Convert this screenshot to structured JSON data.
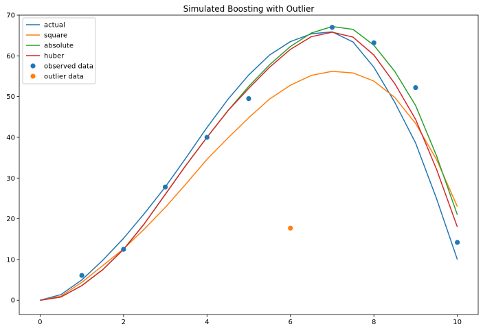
{
  "chart_data": {
    "type": "line",
    "title": "Simulated Boosting with Outlier",
    "xlabel": "",
    "ylabel": "",
    "xlim": [
      -0.5,
      10.5
    ],
    "ylim": [
      -3.5,
      70
    ],
    "xticks": [
      0,
      2,
      4,
      6,
      8,
      10
    ],
    "yticks": [
      0,
      10,
      20,
      30,
      40,
      50,
      60,
      70
    ],
    "grid": false,
    "legend_position": "upper-left",
    "series": [
      {
        "name": "actual",
        "kind": "line",
        "color": "#1f77b4",
        "x": [
          0,
          0.5,
          1,
          1.5,
          2,
          2.5,
          3,
          3.5,
          4,
          4.5,
          5,
          5.5,
          6,
          6.5,
          7,
          7.5,
          8,
          8.5,
          9,
          9.5,
          10
        ],
        "y": [
          0,
          1.4,
          5,
          9.8,
          15.2,
          21.3,
          27.8,
          35,
          42.4,
          49.3,
          55.3,
          60.2,
          63.5,
          65.4,
          65.9,
          63.4,
          57.2,
          48.6,
          38.6,
          25,
          10
        ]
      },
      {
        "name": "square",
        "kind": "line",
        "color": "#ff7f0e",
        "x": [
          0,
          0.5,
          1,
          1.5,
          2,
          2.5,
          3,
          3.5,
          4,
          4.5,
          5,
          5.5,
          6,
          6.5,
          7,
          7.5,
          8,
          8.5,
          9,
          9.5,
          10
        ],
        "y": [
          0,
          1,
          4.4,
          8.5,
          12.6,
          17.5,
          22.8,
          28.6,
          34.6,
          39.8,
          44.8,
          49.4,
          52.8,
          55.2,
          56.2,
          55.8,
          53.8,
          49.8,
          43.4,
          34.6,
          23
        ]
      },
      {
        "name": "absolute",
        "kind": "line",
        "color": "#2ca02c",
        "x": [
          0,
          0.5,
          1,
          1.5,
          2,
          2.5,
          3,
          3.5,
          4,
          4.5,
          5,
          5.5,
          6,
          6.5,
          7,
          7.5,
          8,
          8.5,
          9,
          9.5,
          10
        ],
        "y": [
          0,
          0.8,
          3.6,
          7.5,
          12.5,
          18.8,
          26,
          33.2,
          40,
          46.5,
          52.5,
          57.8,
          62.3,
          65.6,
          67.2,
          66.5,
          62.6,
          56.2,
          47.8,
          35.5,
          21
        ]
      },
      {
        "name": "huber",
        "kind": "line",
        "color": "#d62728",
        "x": [
          0,
          0.5,
          1,
          1.5,
          2,
          2.5,
          3,
          3.5,
          4,
          4.5,
          5,
          5.5,
          6,
          6.5,
          7,
          7.5,
          8,
          8.5,
          9,
          9.5,
          10
        ],
        "y": [
          0,
          0.8,
          3.6,
          7.5,
          12.5,
          18.8,
          26,
          33.2,
          40,
          46.5,
          52,
          57.2,
          61.6,
          64.7,
          65.8,
          64.6,
          60.2,
          53.2,
          44.4,
          32.2,
          18
        ]
      },
      {
        "name": "observed data",
        "kind": "scatter",
        "color": "#1f77b4",
        "x": [
          1,
          2,
          3,
          4,
          5,
          7,
          8,
          9,
          10
        ],
        "y": [
          6.1,
          12.5,
          27.8,
          40,
          49.5,
          67,
          63.2,
          52.2,
          14.2
        ]
      },
      {
        "name": "outlier data",
        "kind": "scatter",
        "color": "#ff7f0e",
        "x": [
          6
        ],
        "y": [
          17.7
        ]
      }
    ]
  }
}
